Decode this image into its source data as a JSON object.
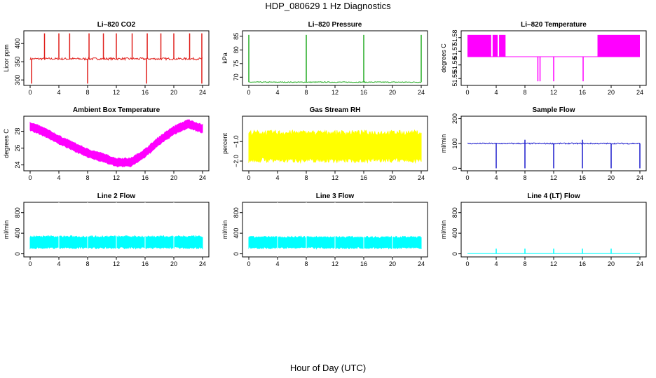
{
  "page": {
    "title": "HDP_080629  1 Hz Diagnostics",
    "x_title": "Hour of Day (UTC)"
  },
  "chart_data": [
    {
      "type": "line",
      "title": "Li–820 CO2",
      "ylabel": "Licor ppm",
      "color": "#e0201c",
      "xlim": [
        0,
        24
      ],
      "ylim": [
        285,
        435
      ],
      "yticks": [
        "300",
        "350",
        "400"
      ],
      "ytick_values": [
        300,
        350,
        400
      ],
      "xticks": [
        0,
        4,
        8,
        12,
        16,
        20,
        24
      ],
      "baseline": 358,
      "noise": 3,
      "spikes_up": [
        2,
        4,
        5.5,
        8.2,
        10.2,
        12,
        14.2,
        16.3,
        18.2,
        20,
        22.2,
        23.9
      ],
      "spike_up_to": 428,
      "spikes_down": [
        0.2,
        8,
        16.2,
        23.9
      ],
      "spike_down_to": 290
    },
    {
      "type": "line",
      "title": "Li–820 Pressure",
      "ylabel": "kPa",
      "color": "#22aa22",
      "xlim": [
        0,
        24
      ],
      "ylim": [
        67,
        87
      ],
      "yticks": [
        "70",
        "75",
        "80",
        "85"
      ],
      "ytick_values": [
        70,
        75,
        80,
        85
      ],
      "xticks": [
        0,
        4,
        8,
        12,
        16,
        20,
        24
      ],
      "baseline": 68.2,
      "noise": 0.15,
      "spikes_up": [
        0,
        8,
        16,
        24
      ],
      "spike_up_to": 85.5
    },
    {
      "type": "step",
      "title": "Li–820 Temperature",
      "ylabel": "degrees C",
      "color": "#ff00ff",
      "xlim": [
        0,
        24
      ],
      "ylim": [
        51.545,
        51.585
      ],
      "yticks": [
        "51.55",
        "51.56",
        "51.57",
        "51.58"
      ],
      "ytick_values": [
        51.55,
        51.56,
        51.57,
        51.58
      ],
      "xticks": [
        0,
        4,
        8,
        12,
        16,
        20,
        24
      ],
      "low": 51.566,
      "high": 51.582,
      "dip": 51.548,
      "high_blocks": [
        [
          0,
          3.3
        ],
        [
          3.5,
          4.2
        ],
        [
          4.4,
          5.3
        ],
        [
          18.1,
          24
        ]
      ],
      "dips": [
        9.8,
        10.1,
        12,
        16.1
      ]
    },
    {
      "type": "area",
      "title": "Ambient Box Temperature",
      "ylabel": "degrees C",
      "color": "#ff00ff",
      "xlim": [
        0,
        24
      ],
      "ylim": [
        23.3,
        29.8
      ],
      "yticks": [
        "24",
        "26",
        "28"
      ],
      "ytick_values": [
        24,
        26,
        28
      ],
      "xticks": [
        0,
        4,
        8,
        12,
        16,
        20,
        24
      ],
      "x": [
        0,
        2,
        4,
        6,
        8,
        10,
        12,
        14,
        16,
        18,
        20,
        22,
        24
      ],
      "y": [
        28.6,
        27.9,
        27.0,
        26.2,
        25.4,
        24.9,
        24.3,
        24.3,
        25.4,
        26.9,
        28.1,
        28.9,
        28.3
      ],
      "band": 0.5
    },
    {
      "type": "area",
      "title": "Gas Stream RH",
      "ylabel": "percent",
      "color": "#ffff00",
      "xlim": [
        0,
        24
      ],
      "ylim": [
        -2.5,
        0.3
      ],
      "yticks": [
        "−2.0",
        "−1.0"
      ],
      "ytick_values": [
        -2.0,
        -1.0
      ],
      "xticks": [
        0,
        4,
        8,
        12,
        16,
        20,
        24
      ],
      "x": [
        0,
        24
      ],
      "y": [
        -1.25,
        -1.25
      ],
      "band": 0.75
    },
    {
      "type": "line",
      "title": "Sample Flow",
      "ylabel": "ml/min",
      "color": "#1a1acc",
      "xlim": [
        0,
        24
      ],
      "ylim": [
        -10,
        210
      ],
      "yticks": [
        "0",
        "100",
        "200"
      ],
      "ytick_values": [
        0,
        100,
        200
      ],
      "xticks": [
        0,
        4,
        8,
        12,
        16,
        20,
        24
      ],
      "baseline": 100,
      "noise": 2.5,
      "spikes_down": [
        4,
        8,
        12,
        16,
        20,
        24
      ],
      "spike_down_to": 0,
      "spikes_up": [
        8,
        16
      ],
      "spike_up_to": 115
    },
    {
      "type": "area",
      "title": "Line 2 Flow",
      "ylabel": "ml/min",
      "color": "#00ffff",
      "xlim": [
        0,
        24
      ],
      "ylim": [
        -60,
        1000
      ],
      "yticks": [
        "0",
        "400",
        "800"
      ],
      "ytick_values": [
        0,
        400,
        800
      ],
      "xticks": [
        0,
        4,
        8,
        12,
        16,
        20,
        24
      ],
      "x": [
        0,
        24
      ],
      "y": [
        225,
        225
      ],
      "band": 115,
      "gaps": [
        4,
        8,
        12,
        16,
        20
      ]
    },
    {
      "type": "area",
      "title": "Line 3 Flow",
      "ylabel": "ml/min",
      "color": "#00ffff",
      "xlim": [
        0,
        24
      ],
      "ylim": [
        -60,
        1000
      ],
      "yticks": [
        "0",
        "400",
        "800"
      ],
      "ytick_values": [
        0,
        400,
        800
      ],
      "xticks": [
        0,
        4,
        8,
        12,
        16,
        20,
        24
      ],
      "x": [
        0,
        24
      ],
      "y": [
        220,
        220
      ],
      "band": 110,
      "gaps": [
        4,
        8,
        12,
        16,
        20
      ]
    },
    {
      "type": "line",
      "title": "Line 4 (LT) Flow",
      "ylabel": "ml/min",
      "color": "#00ffff",
      "xlim": [
        0,
        24
      ],
      "ylim": [
        -60,
        1000
      ],
      "yticks": [
        "0",
        "400",
        "800"
      ],
      "ytick_values": [
        0,
        400,
        800
      ],
      "xticks": [
        0,
        4,
        8,
        12,
        16,
        20,
        24
      ],
      "baseline": 5,
      "noise": 0,
      "spikes_up": [
        4,
        8,
        12,
        16,
        20
      ],
      "spike_up_to": 100
    }
  ]
}
